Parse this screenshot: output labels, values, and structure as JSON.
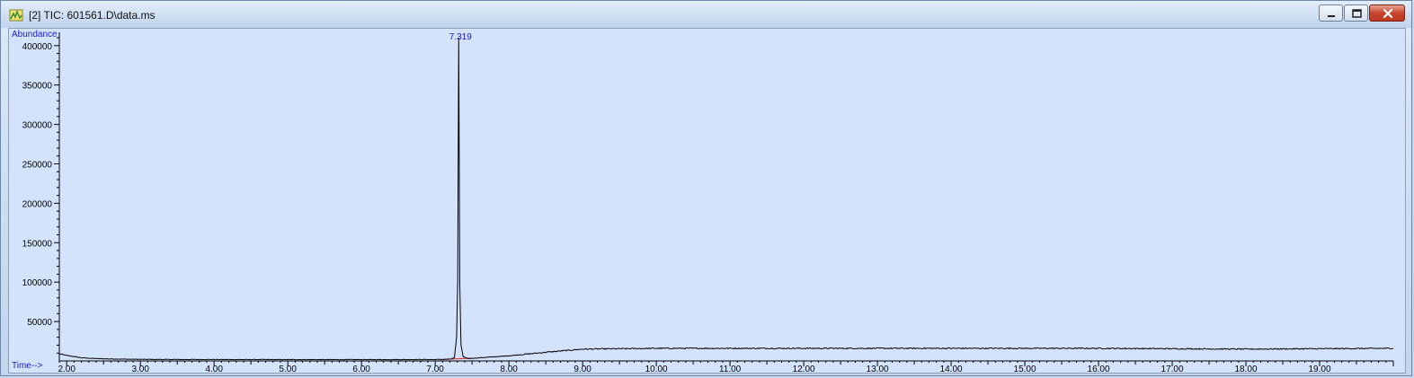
{
  "window": {
    "title": "[2] TIC: 601561.D\\data.ms",
    "icon": "chromatogram-app-icon",
    "buttons": [
      "minimize",
      "maximize",
      "close"
    ],
    "close_color": "#c7442d"
  },
  "chart_data": {
    "type": "line",
    "title": "",
    "ylabel": "Abundance",
    "xlabel": "Time-->",
    "xlim": [
      1.9,
      20.0
    ],
    "ylim": [
      0,
      410000
    ],
    "x_ticks": [
      "2.00",
      "3.00",
      "4.00",
      "5.00",
      "6.00",
      "7.00",
      "8.00",
      "9.00",
      "10.00",
      "11.00",
      "12.00",
      "13.00",
      "14.00",
      "15.00",
      "16.00",
      "17.00",
      "18.00",
      "19.00"
    ],
    "x_tick_values": [
      2,
      3,
      4,
      5,
      6,
      7,
      8,
      9,
      10,
      11,
      12,
      13,
      14,
      15,
      16,
      17,
      18,
      19
    ],
    "y_ticks": [
      "50000",
      "100000",
      "150000",
      "200000",
      "250000",
      "300000",
      "350000",
      "400000"
    ],
    "y_tick_values": [
      50000,
      100000,
      150000,
      200000,
      250000,
      300000,
      350000,
      400000
    ],
    "grid": false,
    "series": [
      {
        "x": [
          1.9,
          2.0,
          2.1,
          2.2,
          2.4,
          2.6,
          3.0,
          3.5,
          4.0,
          5.0,
          6.0,
          7.0,
          7.2,
          7.26,
          7.29,
          7.305,
          7.319,
          7.333,
          7.35,
          7.38,
          7.45,
          7.6,
          8.0,
          8.5,
          9.0,
          9.5,
          10.0,
          11.0,
          12.0,
          13.0,
          14.0,
          15.0,
          16.0,
          17.0,
          18.0,
          19.0,
          20.0
        ],
        "y": [
          9000,
          7000,
          5500,
          4000,
          3000,
          2500,
          2000,
          1800,
          1800,
          1700,
          1700,
          1800,
          2200,
          4000,
          30000,
          100000,
          410000,
          100000,
          20000,
          5000,
          3000,
          4000,
          6500,
          11000,
          15000,
          15500,
          16000,
          16000,
          16000,
          16000,
          16000,
          16000,
          16000,
          15500,
          15000,
          15500,
          16000
        ],
        "color": "#000000"
      }
    ],
    "annotations": [
      {
        "x": 7.319,
        "text": "7.319",
        "color": "#1a1acc"
      }
    ],
    "baseline": {
      "x_start": 7.1,
      "x_end": 7.5,
      "color": "#e02020"
    }
  }
}
